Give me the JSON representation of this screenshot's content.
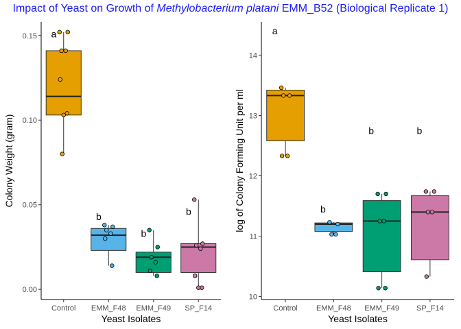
{
  "title": {
    "prefix": "Impact of Yeast on Growth of ",
    "organism": "Methylobacterium platani",
    "suffix": " EMM_B52 (Biological  Replicate 1)",
    "color": "#1a1aff"
  },
  "chart_data": [
    {
      "type": "box",
      "xlabel": "Yeast Isolates",
      "ylabel": "Colony Weight (gram)",
      "ylim": [
        -0.006,
        0.158
      ],
      "yticks": [
        0.0,
        0.05,
        0.1,
        0.15
      ],
      "ytick_labels": [
        "0.00",
        "0.05",
        "0.10",
        "0.15"
      ],
      "categories": [
        "Control",
        "EMM_F48",
        "EMM_F49",
        "SP_F14"
      ],
      "colors": [
        "#E69F00",
        "#56B4E9",
        "#009E73",
        "#CC79A7"
      ],
      "boxes": [
        {
          "q1": 0.103,
          "median": 0.114,
          "q3": 0.141,
          "whisker_low": 0.08,
          "whisker_high": 0.152
        },
        {
          "q1": 0.023,
          "median": 0.032,
          "q3": 0.036,
          "whisker_low": 0.014,
          "whisker_high": 0.038
        },
        {
          "q1": 0.01,
          "median": 0.019,
          "q3": 0.022,
          "whisker_low": 0.008,
          "whisker_high": 0.035
        },
        {
          "q1": 0.01,
          "median": 0.025,
          "q3": 0.027,
          "whisker_low": 0.001,
          "whisker_high": 0.053
        }
      ],
      "points": [
        [
          0.152,
          0.152,
          0.141,
          0.141,
          0.124,
          0.104,
          0.103,
          0.08
        ],
        [
          0.038,
          0.037,
          0.035,
          0.033,
          0.03,
          0.014
        ],
        [
          0.035,
          0.025,
          0.019,
          0.016,
          0.011,
          0.008
        ],
        [
          0.053,
          0.027,
          0.026,
          0.024,
          0.008,
          0.001,
          0.001
        ]
      ],
      "significance": [
        {
          "label": "a",
          "y": 0.151
        },
        {
          "label": "b",
          "y": 0.043
        },
        {
          "label": "b",
          "y": 0.033
        },
        {
          "label": "b",
          "y": 0.046
        }
      ]
    },
    {
      "type": "box",
      "xlabel": "Yeast Isolates",
      "ylabel": "log of Colony Forming Unit per ml",
      "ylim": [
        9.95,
        14.55
      ],
      "yticks": [
        10,
        11,
        12,
        13,
        14
      ],
      "ytick_labels": [
        "10",
        "11",
        "12",
        "13",
        "14"
      ],
      "categories": [
        "Control",
        "EMM_F48",
        "EMM_F49",
        "SP_F14"
      ],
      "colors": [
        "#E69F00",
        "#56B4E9",
        "#009E73",
        "#CC79A7"
      ],
      "boxes": [
        {
          "q1": 12.58,
          "median": 13.33,
          "q3": 13.42,
          "whisker_low": 12.33,
          "whisker_high": 13.46
        },
        {
          "q1": 11.08,
          "median": 11.2,
          "q3": 11.22,
          "whisker_low": 11.03,
          "whisker_high": 11.23
        },
        {
          "q1": 10.41,
          "median": 11.25,
          "q3": 11.59,
          "whisker_low": 10.14,
          "whisker_high": 11.7
        },
        {
          "q1": 10.61,
          "median": 11.4,
          "q3": 11.67,
          "whisker_low": 10.33,
          "whisker_high": 11.74
        }
      ],
      "points": [
        [
          13.46,
          13.33,
          13.33,
          12.33,
          12.33
        ],
        [
          11.23,
          11.2,
          11.03,
          11.03
        ],
        [
          11.7,
          11.7,
          11.25,
          11.25,
          10.14,
          10.14
        ],
        [
          11.74,
          11.74,
          11.4,
          11.4,
          10.33
        ]
      ],
      "significance": [
        {
          "label": "a",
          "y": 14.4
        },
        {
          "label": "b",
          "y": 11.45
        },
        {
          "label": "b",
          "y": 12.75
        },
        {
          "label": "b",
          "y": 12.75
        }
      ]
    }
  ]
}
